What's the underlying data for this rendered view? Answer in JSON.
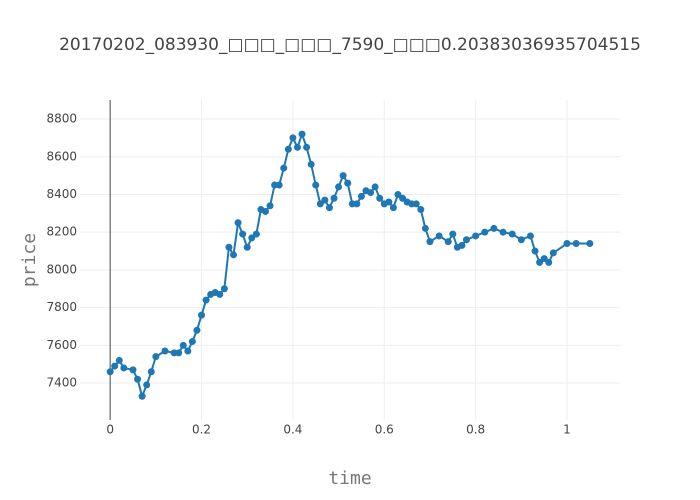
{
  "chart_data": {
    "type": "line",
    "title": "20170202_083930_□□□_□□□_7590_□□□0.20383036935704515",
    "xlabel": "time",
    "ylabel": "price",
    "x": [
      0,
      0.01,
      0.02,
      0.03,
      0.05,
      0.06,
      0.07,
      0.08,
      0.09,
      0.1,
      0.12,
      0.14,
      0.15,
      0.16,
      0.17,
      0.18,
      0.19,
      0.2,
      0.21,
      0.22,
      0.23,
      0.24,
      0.25,
      0.26,
      0.27,
      0.28,
      0.29,
      0.3,
      0.31,
      0.32,
      0.33,
      0.34,
      0.35,
      0.36,
      0.37,
      0.38,
      0.39,
      0.4,
      0.41,
      0.42,
      0.43,
      0.44,
      0.45,
      0.46,
      0.47,
      0.48,
      0.49,
      0.5,
      0.51,
      0.52,
      0.53,
      0.54,
      0.55,
      0.56,
      0.57,
      0.58,
      0.59,
      0.6,
      0.61,
      0.62,
      0.63,
      0.64,
      0.65,
      0.66,
      0.67,
      0.68,
      0.69,
      0.7,
      0.72,
      0.74,
      0.75,
      0.76,
      0.77,
      0.78,
      0.8,
      0.82,
      0.84,
      0.86,
      0.88,
      0.9,
      0.92,
      0.93,
      0.94,
      0.95,
      0.96,
      0.97,
      1.0,
      1.02,
      1.05
    ],
    "series": [
      {
        "color": "#1f77b4",
        "values": [
          7460,
          7490,
          7520,
          7480,
          7470,
          7420,
          7330,
          7390,
          7460,
          7540,
          7570,
          7560,
          7560,
          7600,
          7570,
          7620,
          7680,
          7760,
          7840,
          7870,
          7880,
          7870,
          7900,
          8120,
          8080,
          8250,
          8190,
          8120,
          8170,
          8190,
          8320,
          8310,
          8340,
          8450,
          8450,
          8540,
          8640,
          8700,
          8650,
          8720,
          8650,
          8560,
          8450,
          8350,
          8370,
          8330,
          8380,
          8440,
          8500,
          8460,
          8350,
          8350,
          8390,
          8420,
          8410,
          8440,
          8380,
          8350,
          8360,
          8330,
          8400,
          8380,
          8360,
          8350,
          8350,
          8320,
          8220,
          8150,
          8180,
          8150,
          8190,
          8120,
          8130,
          8160,
          8180,
          8200,
          8220,
          8200,
          8190,
          8160,
          8180,
          8100,
          8040,
          8060,
          8040,
          8090,
          8140,
          8140,
          8140
        ]
      }
    ],
    "xlim": [
      -0.066,
      1.116
    ],
    "xticks": [
      0,
      0.2,
      0.4,
      0.6,
      0.8,
      1
    ],
    "ylim": [
      7204,
      8901
    ],
    "yticks": [
      7400,
      7600,
      7800,
      8000,
      8200,
      8400,
      8600,
      8800
    ],
    "grid": true
  }
}
